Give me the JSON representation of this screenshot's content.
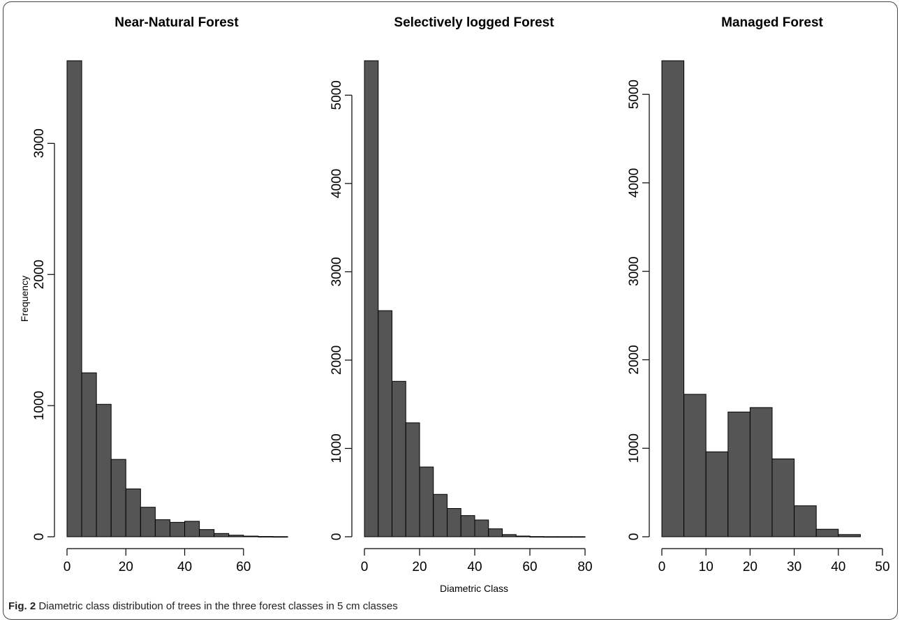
{
  "bar_color": "#555555",
  "caption": {
    "label": "Fig. 2",
    "text": " Diametric class distribution of trees in the three forest classes in 5 cm classes"
  },
  "chart_data": [
    {
      "type": "bar",
      "title": "Near-Natural Forest",
      "xlabel": "",
      "ylabel": "Frequency",
      "bin_width": 5,
      "bin_starts": [
        0,
        5,
        10,
        15,
        20,
        25,
        30,
        35,
        40,
        45,
        50,
        55,
        60,
        65,
        70
      ],
      "values": [
        3630,
        1250,
        1010,
        590,
        365,
        225,
        130,
        110,
        118,
        55,
        25,
        12,
        5,
        2,
        1
      ],
      "xlim": [
        0,
        75
      ],
      "ylim": [
        0,
        3630
      ],
      "x_ticks": [
        0,
        20,
        40,
        60
      ],
      "y_ticks": [
        0,
        1000,
        2000,
        3000
      ]
    },
    {
      "type": "bar",
      "title": "Selectively logged Forest",
      "xlabel": "Diametric Class",
      "ylabel": "",
      "bin_width": 5,
      "bin_starts": [
        0,
        5,
        10,
        15,
        20,
        25,
        30,
        35,
        40,
        45,
        50,
        55,
        60,
        65,
        70,
        75
      ],
      "values": [
        5390,
        2560,
        1760,
        1290,
        790,
        480,
        320,
        240,
        190,
        90,
        25,
        8,
        2,
        1,
        1,
        1
      ],
      "xlim": [
        0,
        80
      ],
      "ylim": [
        0,
        5390
      ],
      "x_ticks": [
        0,
        20,
        40,
        60,
        80
      ],
      "y_ticks": [
        0,
        1000,
        2000,
        3000,
        4000,
        5000
      ]
    },
    {
      "type": "bar",
      "title": "Managed Forest",
      "xlabel": "",
      "ylabel": "",
      "bin_width": 5,
      "bin_starts": [
        0,
        5,
        10,
        15,
        20,
        25,
        30,
        35,
        40
      ],
      "values": [
        5380,
        1610,
        960,
        1410,
        1460,
        880,
        350,
        85,
        25
      ],
      "xlim": [
        0,
        50
      ],
      "ylim": [
        0,
        5380
      ],
      "x_ticks": [
        0,
        10,
        20,
        30,
        40,
        50
      ],
      "y_ticks": [
        0,
        1000,
        2000,
        3000,
        4000,
        5000
      ]
    }
  ]
}
